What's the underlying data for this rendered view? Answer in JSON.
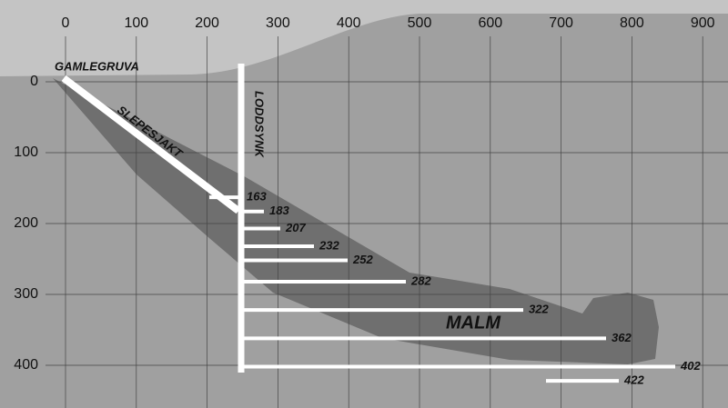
{
  "x_axis": {
    "ticks": [
      0,
      100,
      200,
      300,
      400,
      500,
      600,
      700,
      800,
      900
    ]
  },
  "y_axis": {
    "ticks": [
      0,
      100,
      200,
      300,
      400
    ]
  },
  "labels": {
    "mine": "GAMLEGRUVA",
    "incline": "SLEPESJAKT",
    "shaft": "LODDSYNK",
    "ore": "MALM"
  },
  "levels": [
    163,
    183,
    207,
    232,
    252,
    282,
    322,
    362,
    402,
    422
  ]
}
